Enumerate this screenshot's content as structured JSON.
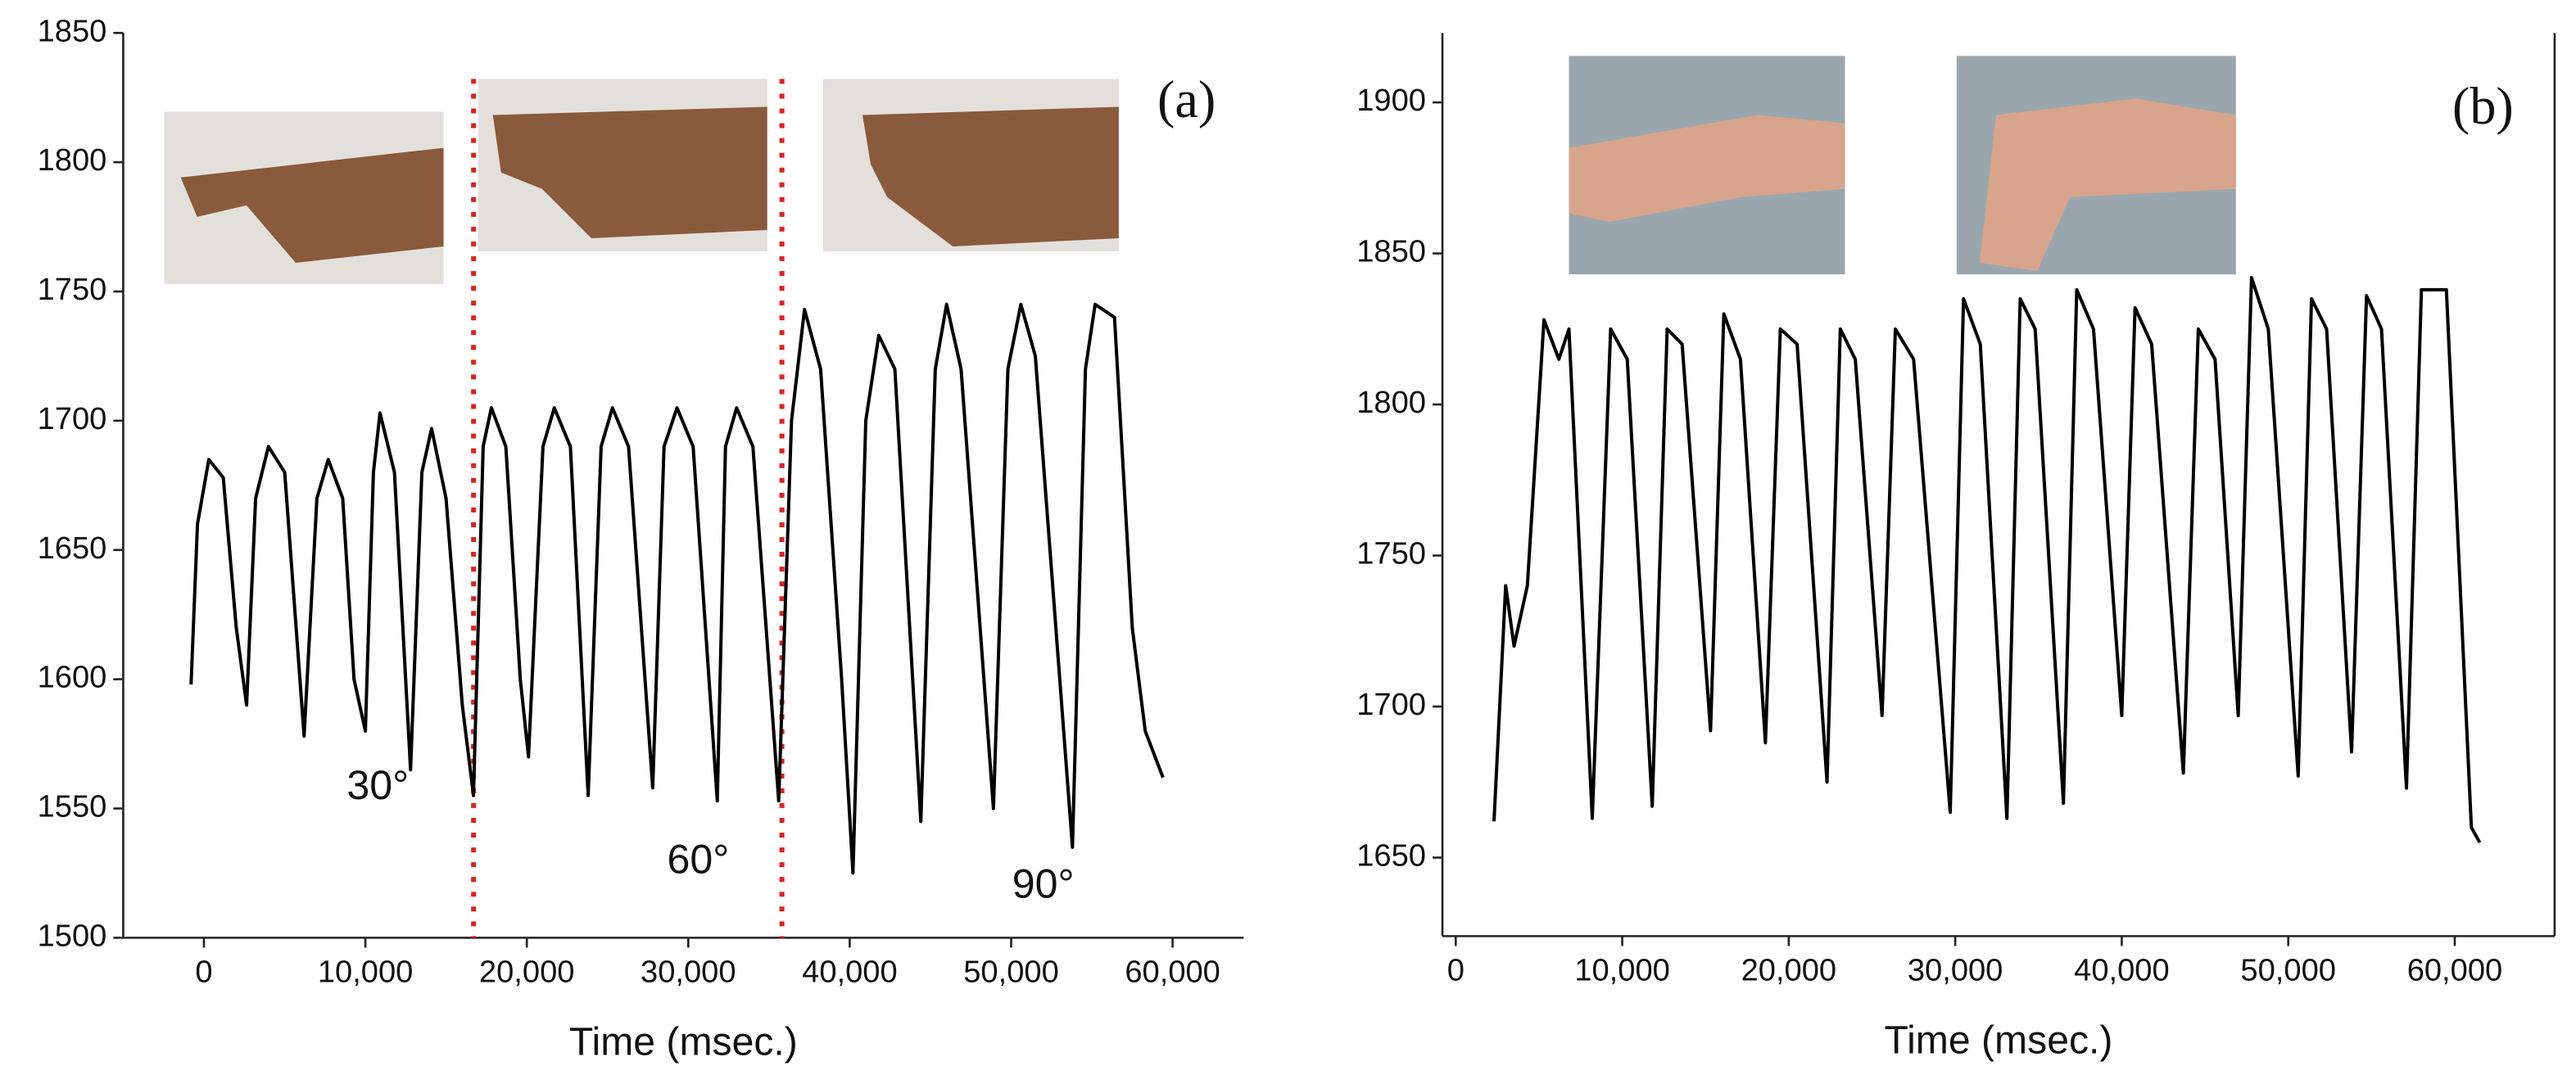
{
  "chart_data": [
    {
      "type": "line",
      "label": "(a)",
      "xlabel": "Time (msec.)",
      "color": "#000000",
      "x": [
        -800,
        -400,
        300,
        1200,
        2000,
        2640,
        3200,
        4000,
        5000,
        6200,
        7000,
        7700,
        8600,
        9300,
        10000,
        10500,
        10900,
        11800,
        12800,
        13500,
        14100,
        15000,
        16000,
        16700,
        17300,
        17800,
        18700,
        19600,
        20100,
        21000,
        21700,
        22700,
        23800,
        24600,
        25300,
        26300,
        27800,
        28500,
        29300,
        30300,
        31800,
        32300,
        33000,
        34000,
        35600,
        36400,
        37200,
        38200,
        39500,
        40200,
        41000,
        41800,
        42800,
        44400,
        45300,
        46000,
        46900,
        48900,
        49800,
        50600,
        51500,
        53800,
        54600,
        55200,
        56400,
        57500,
        58300,
        59400
      ],
      "values": [
        1598,
        1660,
        1685,
        1678,
        1620,
        1590,
        1670,
        1690,
        1680,
        1578,
        1670,
        1685,
        1670,
        1600,
        1580,
        1680,
        1703,
        1680,
        1565,
        1680,
        1697,
        1670,
        1590,
        1555,
        1690,
        1705,
        1690,
        1600,
        1570,
        1690,
        1705,
        1690,
        1555,
        1690,
        1705,
        1690,
        1558,
        1690,
        1705,
        1690,
        1553,
        1690,
        1705,
        1690,
        1553,
        1700,
        1743,
        1720,
        1600,
        1525,
        1700,
        1733,
        1720,
        1545,
        1720,
        1745,
        1720,
        1550,
        1720,
        1745,
        1725,
        1535,
        1720,
        1745,
        1740,
        1620,
        1580,
        1562
      ],
      "xlim": [
        -5000,
        64400
      ],
      "ylim": [
        1500,
        1850
      ],
      "xticks": [
        0,
        {
          "value": 10000,
          "label": "10,000"
        },
        {
          "value": 20000,
          "label": "20,000"
        },
        {
          "value": 30000,
          "label": "30,000"
        },
        {
          "value": 40000,
          "label": "40,000"
        },
        {
          "value": 50000,
          "label": "50,000"
        },
        {
          "value": 60000,
          "label": "60,000"
        }
      ],
      "yticks": [
        1500,
        1550,
        1600,
        1650,
        1700,
        1750,
        1800,
        1850
      ],
      "vlines": [
        16700,
        35800
      ],
      "vline_color": "#e02020",
      "annotations": [
        "30°",
        "60°",
        "90°"
      ]
    },
    {
      "type": "line",
      "label": "(b)",
      "xlabel": "Time (msec.)",
      "color": "#000000",
      "x": [
        2300,
        3000,
        3500,
        4300,
        5300,
        6200,
        6800,
        8200,
        9300,
        10300,
        11800,
        12700,
        13600,
        15300,
        16100,
        17100,
        18600,
        19500,
        20500,
        22300,
        23100,
        24000,
        25600,
        26400,
        27500,
        29700,
        30500,
        31500,
        33100,
        33900,
        34800,
        36500,
        37300,
        38300,
        40000,
        40800,
        41800,
        43700,
        44600,
        45600,
        47000,
        47800,
        48800,
        50600,
        51400,
        52300,
        53800,
        54700,
        55600,
        57100,
        58000,
        59500,
        61000,
        61500
      ],
      "values": [
        1662,
        1740,
        1720,
        1740,
        1828,
        1815,
        1825,
        1663,
        1825,
        1815,
        1667,
        1825,
        1820,
        1692,
        1830,
        1815,
        1688,
        1825,
        1820,
        1675,
        1825,
        1815,
        1697,
        1825,
        1815,
        1665,
        1835,
        1820,
        1663,
        1835,
        1825,
        1668,
        1838,
        1825,
        1697,
        1832,
        1820,
        1678,
        1825,
        1815,
        1697,
        1842,
        1825,
        1677,
        1835,
        1825,
        1685,
        1836,
        1825,
        1673,
        1838,
        1838,
        1660,
        1655
      ],
      "xlim": [
        -800,
        66000
      ],
      "ylim": [
        1624,
        1923
      ],
      "xticks": [
        0,
        {
          "value": 10000,
          "label": "10,000"
        },
        {
          "value": 20000,
          "label": "20,000"
        },
        {
          "value": 30000,
          "label": "30,000"
        },
        {
          "value": 40000,
          "label": "40,000"
        },
        {
          "value": 50000,
          "label": "50,000"
        },
        {
          "value": 60000,
          "label": "60,000"
        }
      ],
      "yticks": [
        1650,
        1700,
        1750,
        1800,
        1850,
        1900
      ]
    }
  ]
}
